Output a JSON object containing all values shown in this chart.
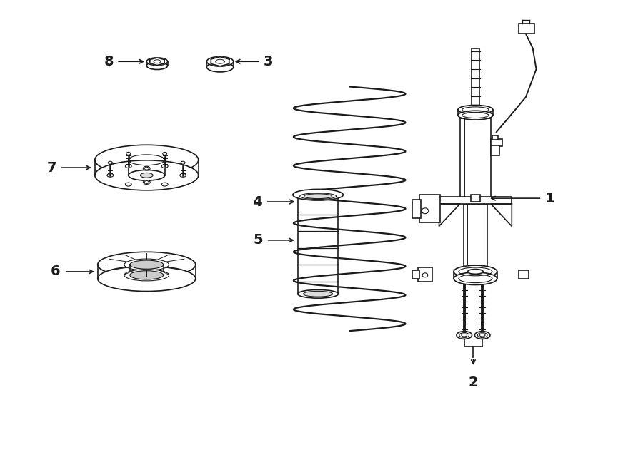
{
  "bg_color": "#ffffff",
  "line_color": "#1a1a1a",
  "line_width": 1.2,
  "fig_width": 9.0,
  "fig_height": 6.62
}
